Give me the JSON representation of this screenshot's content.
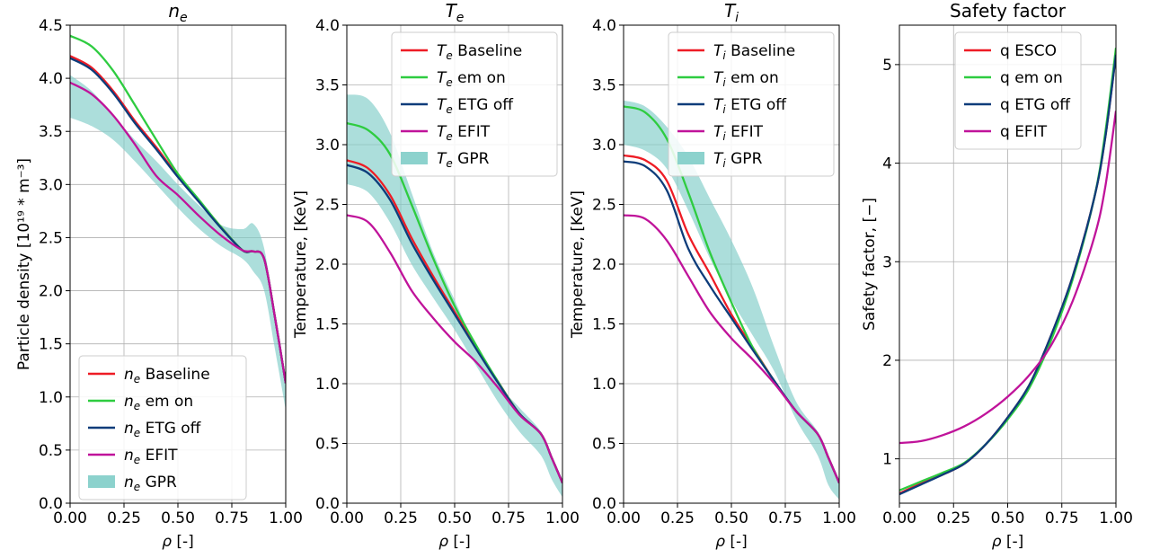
{
  "chart_data": [
    {
      "type": "line",
      "title_main": "n",
      "title_sub": "e",
      "xlabel": "ρ [-]",
      "ylabel": "Particle density [10¹⁹ * m⁻³]",
      "xlim": [
        0,
        1
      ],
      "ylim": [
        0,
        4.5
      ],
      "xticks": [
        0,
        0.25,
        0.5,
        0.75,
        1.0
      ],
      "xtick_labels": [
        "0.00",
        "0.25",
        "0.50",
        "0.75",
        "1.00"
      ],
      "yticks": [
        0,
        0.5,
        1.0,
        1.5,
        2.0,
        2.5,
        3.0,
        3.5,
        4.0,
        4.5
      ],
      "ytick_labels": [
        "0.0",
        "0.5",
        "1.0",
        "1.5",
        "2.0",
        "2.5",
        "3.0",
        "3.5",
        "4.0",
        "4.5"
      ],
      "grid": true,
      "legend_position": "bottom-left",
      "band": {
        "sym": "n",
        "sub": "e",
        "name": "GPR",
        "color": "#7fcdc8",
        "x": [
          0,
          0.1,
          0.2,
          0.3,
          0.4,
          0.5,
          0.6,
          0.7,
          0.8,
          0.85,
          0.9,
          0.95,
          1.0
        ],
        "upper": [
          4.03,
          3.88,
          3.65,
          3.42,
          3.22,
          3.0,
          2.8,
          2.62,
          2.58,
          2.63,
          2.4,
          1.75,
          1.2
        ],
        "lower": [
          3.63,
          3.55,
          3.42,
          3.22,
          3.0,
          2.78,
          2.58,
          2.42,
          2.3,
          2.18,
          2.0,
          1.45,
          0.88
        ]
      },
      "series": [
        {
          "sym": "n",
          "sub": "e",
          "name": "Baseline",
          "color": "#ee1c25",
          "x": [
            0,
            0.1,
            0.2,
            0.3,
            0.4,
            0.5,
            0.6,
            0.7,
            0.8,
            0.85,
            0.9,
            0.95,
            1.0
          ],
          "y": [
            4.21,
            4.1,
            3.88,
            3.6,
            3.35,
            3.08,
            2.84,
            2.6,
            2.38,
            2.37,
            2.3,
            1.75,
            1.13
          ]
        },
        {
          "sym": "n",
          "sub": "e",
          "name": "em on",
          "color": "#2ecc40",
          "x": [
            0,
            0.1,
            0.2,
            0.3,
            0.4,
            0.5,
            0.6,
            0.7,
            0.8,
            0.85,
            0.9,
            0.95,
            1.0
          ],
          "y": [
            4.4,
            4.3,
            4.07,
            3.75,
            3.42,
            3.1,
            2.85,
            2.6,
            2.38,
            2.37,
            2.3,
            1.75,
            1.13
          ]
        },
        {
          "sym": "n",
          "sub": "e",
          "name": "ETG off",
          "color": "#0d3c7a",
          "x": [
            0,
            0.1,
            0.2,
            0.3,
            0.4,
            0.5,
            0.6,
            0.7,
            0.8,
            0.85,
            0.9,
            0.95,
            1.0
          ],
          "y": [
            4.19,
            4.08,
            3.86,
            3.58,
            3.33,
            3.07,
            2.83,
            2.59,
            2.38,
            2.37,
            2.3,
            1.75,
            1.13
          ]
        },
        {
          "sym": "n",
          "sub": "e",
          "name": "EFIT",
          "color": "#c0139a",
          "x": [
            0,
            0.1,
            0.2,
            0.3,
            0.4,
            0.5,
            0.6,
            0.7,
            0.8,
            0.85,
            0.9,
            0.95,
            1.0
          ],
          "y": [
            3.96,
            3.85,
            3.65,
            3.38,
            3.08,
            2.9,
            2.7,
            2.52,
            2.38,
            2.37,
            2.3,
            1.75,
            1.13
          ]
        }
      ]
    },
    {
      "type": "line",
      "title_main": "T",
      "title_sub": "e",
      "xlabel": "ρ [-]",
      "ylabel": "Temperature, [KeV]",
      "xlim": [
        0,
        1
      ],
      "ylim": [
        0,
        4.0
      ],
      "xticks": [
        0,
        0.25,
        0.5,
        0.75,
        1.0
      ],
      "xtick_labels": [
        "0.00",
        "0.25",
        "0.50",
        "0.75",
        "1.00"
      ],
      "yticks": [
        0,
        0.5,
        1.0,
        1.5,
        2.0,
        2.5,
        3.0,
        3.5,
        4.0
      ],
      "ytick_labels": [
        "0.0",
        "0.5",
        "1.0",
        "1.5",
        "2.0",
        "2.5",
        "3.0",
        "3.5",
        "4.0"
      ],
      "grid": true,
      "legend_position": "top-right",
      "band": {
        "sym": "T",
        "sub": "e",
        "name": "GPR",
        "color": "#7fcdc8",
        "x": [
          0,
          0.1,
          0.2,
          0.3,
          0.4,
          0.5,
          0.6,
          0.7,
          0.8,
          0.9,
          0.95,
          1.0
        ],
        "upper": [
          3.42,
          3.38,
          3.1,
          2.6,
          2.1,
          1.7,
          1.3,
          1.0,
          0.8,
          0.6,
          0.4,
          0.2
        ],
        "lower": [
          2.67,
          2.6,
          2.35,
          2.0,
          1.72,
          1.45,
          1.15,
          0.85,
          0.6,
          0.4,
          0.2,
          0.05
        ]
      },
      "series": [
        {
          "sym": "T",
          "sub": "e",
          "name": "Baseline",
          "color": "#ee1c25",
          "x": [
            0,
            0.1,
            0.2,
            0.3,
            0.4,
            0.5,
            0.6,
            0.7,
            0.8,
            0.9,
            0.95,
            1.0
          ],
          "y": [
            2.87,
            2.8,
            2.58,
            2.22,
            1.9,
            1.6,
            1.3,
            1.02,
            0.75,
            0.58,
            0.38,
            0.17
          ]
        },
        {
          "sym": "T",
          "sub": "e",
          "name": "em on",
          "color": "#2ecc40",
          "x": [
            0,
            0.1,
            0.2,
            0.3,
            0.4,
            0.5,
            0.6,
            0.7,
            0.8,
            0.9,
            0.95,
            1.0
          ],
          "y": [
            3.18,
            3.12,
            2.92,
            2.5,
            2.05,
            1.65,
            1.32,
            1.02,
            0.75,
            0.58,
            0.38,
            0.17
          ]
        },
        {
          "sym": "T",
          "sub": "e",
          "name": "ETG off",
          "color": "#0d3c7a",
          "x": [
            0,
            0.1,
            0.2,
            0.3,
            0.4,
            0.5,
            0.6,
            0.7,
            0.8,
            0.9,
            0.95,
            1.0
          ],
          "y": [
            2.83,
            2.76,
            2.54,
            2.18,
            1.87,
            1.58,
            1.29,
            1.01,
            0.75,
            0.58,
            0.38,
            0.17
          ]
        },
        {
          "sym": "T",
          "sub": "e",
          "name": "EFIT",
          "color": "#c0139a",
          "x": [
            0,
            0.1,
            0.2,
            0.3,
            0.4,
            0.5,
            0.6,
            0.7,
            0.8,
            0.9,
            0.95,
            1.0
          ],
          "y": [
            2.41,
            2.35,
            2.1,
            1.78,
            1.55,
            1.35,
            1.18,
            0.97,
            0.74,
            0.58,
            0.38,
            0.17
          ]
        }
      ]
    },
    {
      "type": "line",
      "title_main": "T",
      "title_sub": "i",
      "xlabel": "ρ [-]",
      "ylabel": "Temperature, [KeV]",
      "xlim": [
        0,
        1
      ],
      "ylim": [
        0,
        4.0
      ],
      "xticks": [
        0,
        0.25,
        0.5,
        0.75,
        1.0
      ],
      "xtick_labels": [
        "0.00",
        "0.25",
        "0.50",
        "0.75",
        "1.00"
      ],
      "yticks": [
        0,
        0.5,
        1.0,
        1.5,
        2.0,
        2.5,
        3.0,
        3.5,
        4.0
      ],
      "ytick_labels": [
        "0.0",
        "0.5",
        "1.0",
        "1.5",
        "2.0",
        "2.5",
        "3.0",
        "3.5",
        "4.0"
      ],
      "grid": true,
      "legend_position": "top-right",
      "band": {
        "sym": "T",
        "sub": "i",
        "name": "GPR",
        "color": "#7fcdc8",
        "x": [
          0,
          0.1,
          0.2,
          0.3,
          0.4,
          0.5,
          0.6,
          0.7,
          0.8,
          0.9,
          0.95,
          1.0
        ],
        "upper": [
          3.37,
          3.32,
          3.15,
          2.9,
          2.55,
          2.2,
          1.8,
          1.3,
          0.85,
          0.6,
          0.4,
          0.2
        ],
        "lower": [
          3.0,
          2.95,
          2.8,
          2.45,
          2.05,
          1.7,
          1.4,
          1.1,
          0.7,
          0.4,
          0.15,
          0.03
        ]
      },
      "series": [
        {
          "sym": "T",
          "sub": "i",
          "name": "Baseline",
          "color": "#ee1c25",
          "x": [
            0,
            0.1,
            0.2,
            0.3,
            0.4,
            0.5,
            0.6,
            0.7,
            0.8,
            0.9,
            0.95,
            1.0
          ],
          "y": [
            2.91,
            2.87,
            2.7,
            2.25,
            1.92,
            1.58,
            1.3,
            1.02,
            0.77,
            0.58,
            0.38,
            0.17
          ]
        },
        {
          "sym": "T",
          "sub": "i",
          "name": "em on",
          "color": "#2ecc40",
          "x": [
            0,
            0.1,
            0.2,
            0.3,
            0.4,
            0.5,
            0.6,
            0.7,
            0.8,
            0.9,
            0.95,
            1.0
          ],
          "y": [
            3.32,
            3.27,
            3.05,
            2.6,
            2.1,
            1.68,
            1.3,
            1.02,
            0.77,
            0.58,
            0.38,
            0.17
          ]
        },
        {
          "sym": "T",
          "sub": "i",
          "name": "ETG off",
          "color": "#0d3c7a",
          "x": [
            0,
            0.1,
            0.2,
            0.3,
            0.4,
            0.5,
            0.6,
            0.7,
            0.8,
            0.9,
            0.95,
            1.0
          ],
          "y": [
            2.86,
            2.82,
            2.62,
            2.13,
            1.82,
            1.55,
            1.28,
            1.02,
            0.77,
            0.58,
            0.38,
            0.17
          ]
        },
        {
          "sym": "T",
          "sub": "i",
          "name": "EFIT",
          "color": "#c0139a",
          "x": [
            0,
            0.1,
            0.2,
            0.3,
            0.4,
            0.5,
            0.6,
            0.7,
            0.8,
            0.9,
            0.95,
            1.0
          ],
          "y": [
            2.41,
            2.38,
            2.2,
            1.9,
            1.6,
            1.38,
            1.2,
            1.0,
            0.77,
            0.58,
            0.38,
            0.17
          ]
        }
      ]
    },
    {
      "type": "line",
      "title_main": "Safety factor",
      "title_sub": "",
      "xlabel": "ρ [-]",
      "ylabel": "Safety factor, [−]",
      "xlim": [
        0,
        1
      ],
      "ylim": [
        0.55,
        5.4
      ],
      "xticks": [
        0,
        0.25,
        0.5,
        0.75,
        1.0
      ],
      "xtick_labels": [
        "0.00",
        "0.25",
        "0.50",
        "0.75",
        "1.00"
      ],
      "yticks": [
        1,
        2,
        3,
        4,
        5
      ],
      "ytick_labels": [
        "1",
        "2",
        "3",
        "4",
        "5"
      ],
      "grid": true,
      "legend_position": "top-left",
      "series": [
        {
          "sym": "",
          "sub": "",
          "name": "q ESCO",
          "color": "#ee1c25",
          "x": [
            0,
            0.1,
            0.2,
            0.3,
            0.4,
            0.5,
            0.6,
            0.7,
            0.8,
            0.9,
            0.95,
            1.0
          ],
          "y": [
            0.65,
            0.75,
            0.84,
            0.95,
            1.15,
            1.42,
            1.75,
            2.25,
            2.85,
            3.65,
            4.25,
            5.1
          ]
        },
        {
          "sym": "",
          "sub": "",
          "name": "q em on",
          "color": "#2ecc40",
          "x": [
            0,
            0.1,
            0.2,
            0.3,
            0.4,
            0.5,
            0.6,
            0.7,
            0.8,
            0.9,
            0.95,
            1.0
          ],
          "y": [
            0.68,
            0.77,
            0.86,
            0.96,
            1.15,
            1.4,
            1.72,
            2.2,
            2.82,
            3.65,
            4.3,
            5.17
          ]
        },
        {
          "sym": "",
          "sub": "",
          "name": "q ETG off",
          "color": "#0d3c7a",
          "x": [
            0,
            0.1,
            0.2,
            0.3,
            0.4,
            0.5,
            0.6,
            0.7,
            0.8,
            0.9,
            0.95,
            1.0
          ],
          "y": [
            0.64,
            0.74,
            0.84,
            0.95,
            1.15,
            1.42,
            1.75,
            2.25,
            2.85,
            3.65,
            4.25,
            5.1
          ]
        },
        {
          "sym": "",
          "sub": "",
          "name": "q EFIT",
          "color": "#c0139a",
          "x": [
            0,
            0.1,
            0.2,
            0.3,
            0.4,
            0.5,
            0.6,
            0.7,
            0.8,
            0.9,
            0.95,
            1.0
          ],
          "y": [
            1.16,
            1.18,
            1.24,
            1.33,
            1.46,
            1.63,
            1.85,
            2.15,
            2.6,
            3.25,
            3.75,
            4.53
          ]
        }
      ]
    }
  ]
}
